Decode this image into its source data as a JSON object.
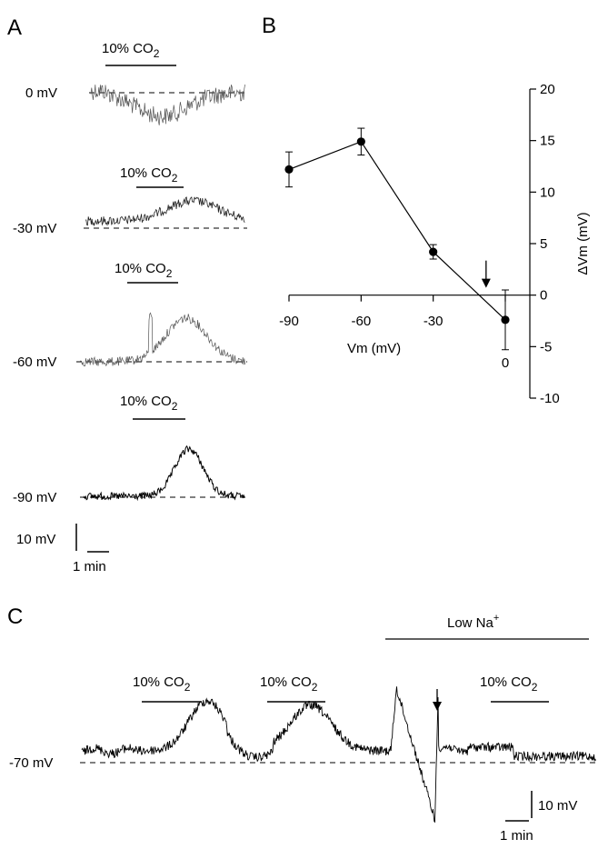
{
  "panels": {
    "a": "A",
    "b": "B",
    "c": "C"
  },
  "co2_label": {
    "main": "10% CO",
    "sub": "2"
  },
  "panel_a": {
    "traces": [
      {
        "holding": "0 mV"
      },
      {
        "holding": "-30 mV"
      },
      {
        "holding": "-60 mV"
      },
      {
        "holding": "-90 mV"
      }
    ],
    "scale_v": "10 mV",
    "scale_t": "1 min"
  },
  "panel_c": {
    "baseline": "-70 mV",
    "low_na": {
      "main": "Low Na",
      "sup": "+"
    },
    "scale_v": "10 mV",
    "scale_t": "1 min"
  },
  "chart_data": {
    "type": "line",
    "xlabel": "Vm (mV)",
    "ylabel": "ΔVm (mV)",
    "xlim": [
      -90,
      0
    ],
    "ylim": [
      -10,
      20
    ],
    "x_ticks": [
      -90,
      -60,
      -30,
      0
    ],
    "y_ticks": [
      20,
      15,
      10,
      5,
      0,
      -5,
      -10
    ],
    "series": [
      {
        "x": [
          -90,
          -60,
          -30,
          0
        ],
        "y": [
          12.2,
          14.9,
          4.2,
          -2.4
        ],
        "error": [
          1.7,
          1.3,
          0.7,
          2.9
        ]
      }
    ],
    "arrow_x": -8
  }
}
